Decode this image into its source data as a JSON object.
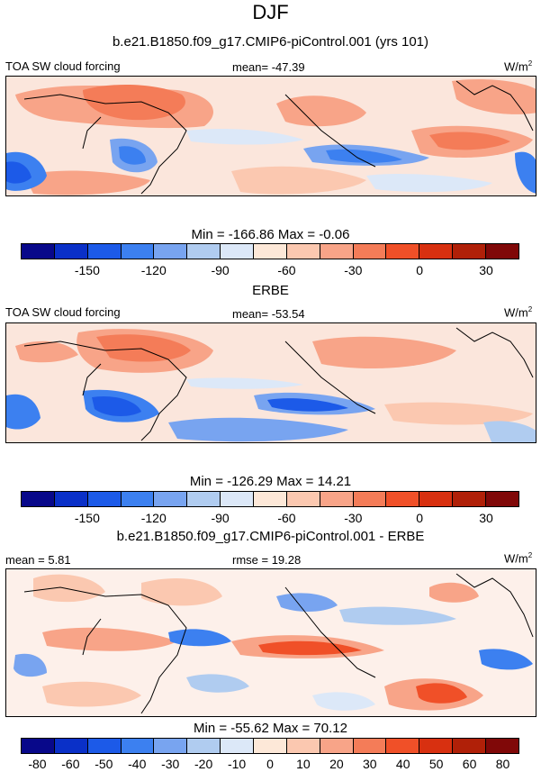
{
  "header": {
    "season": "DJF"
  },
  "panels": [
    {
      "title": "b.e21.B1850.f09_g17.CMIP6-piControl.001 (yrs 101)",
      "left_label": "TOA SW cloud forcing",
      "center_label": "mean= -47.39",
      "units_base": "W/m",
      "units_exp": "2",
      "minmax": "Min = -166.86 Max =  -0.06",
      "colorbar": {
        "colors": [
          "#08088a",
          "#0a30c8",
          "#1c5ae8",
          "#3c80f0",
          "#78a4f0",
          "#b0ccf0",
          "#dce8f8",
          "#fde8d8",
          "#fbc8b0",
          "#f8a488",
          "#f47c58",
          "#f05028",
          "#d83010",
          "#b02008",
          "#800808"
        ],
        "labels": [
          "-150",
          "-120",
          "-90",
          "-60",
          "-30",
          "0",
          "30"
        ]
      },
      "map_stats": {
        "mean": -47.39,
        "min": -166.86,
        "max": -0.06
      }
    },
    {
      "title": "ERBE",
      "left_label": "TOA SW cloud forcing",
      "center_label": "mean= -53.54",
      "units_base": "W/m",
      "units_exp": "2",
      "minmax": "Min = -126.29 Max =  14.21",
      "colorbar": {
        "colors": [
          "#08088a",
          "#0a30c8",
          "#1c5ae8",
          "#3c80f0",
          "#78a4f0",
          "#b0ccf0",
          "#dce8f8",
          "#fde8d8",
          "#fbc8b0",
          "#f8a488",
          "#f47c58",
          "#f05028",
          "#d83010",
          "#b02008",
          "#800808"
        ],
        "labels": [
          "-150",
          "-120",
          "-90",
          "-60",
          "-30",
          "0",
          "30"
        ]
      },
      "map_stats": {
        "mean": -53.54,
        "min": -126.29,
        "max": 14.21
      }
    },
    {
      "title": "b.e21.B1850.f09_g17.CMIP6-piControl.001 - ERBE",
      "left_label": "mean =   5.81",
      "center_label": "rmse =  19.28",
      "units_base": "W/m",
      "units_exp": "2",
      "minmax": "Min = -55.62 Max =  70.12",
      "colorbar": {
        "colors": [
          "#08088a",
          "#0a30c8",
          "#1c5ae8",
          "#3c80f0",
          "#78a4f0",
          "#b0ccf0",
          "#dce8f8",
          "#fde8d8",
          "#fbc8b0",
          "#f8a488",
          "#f47c58",
          "#f05028",
          "#d83010",
          "#b02008",
          "#800808"
        ],
        "labels": [
          "-80",
          "-60",
          "-50",
          "-40",
          "-30",
          "-20",
          "-10",
          "0",
          "10",
          "20",
          "30",
          "40",
          "50",
          "60",
          "80"
        ]
      },
      "map_stats": {
        "mean": 5.81,
        "rmse": 19.28,
        "min": -55.62,
        "max": 70.12
      }
    }
  ]
}
